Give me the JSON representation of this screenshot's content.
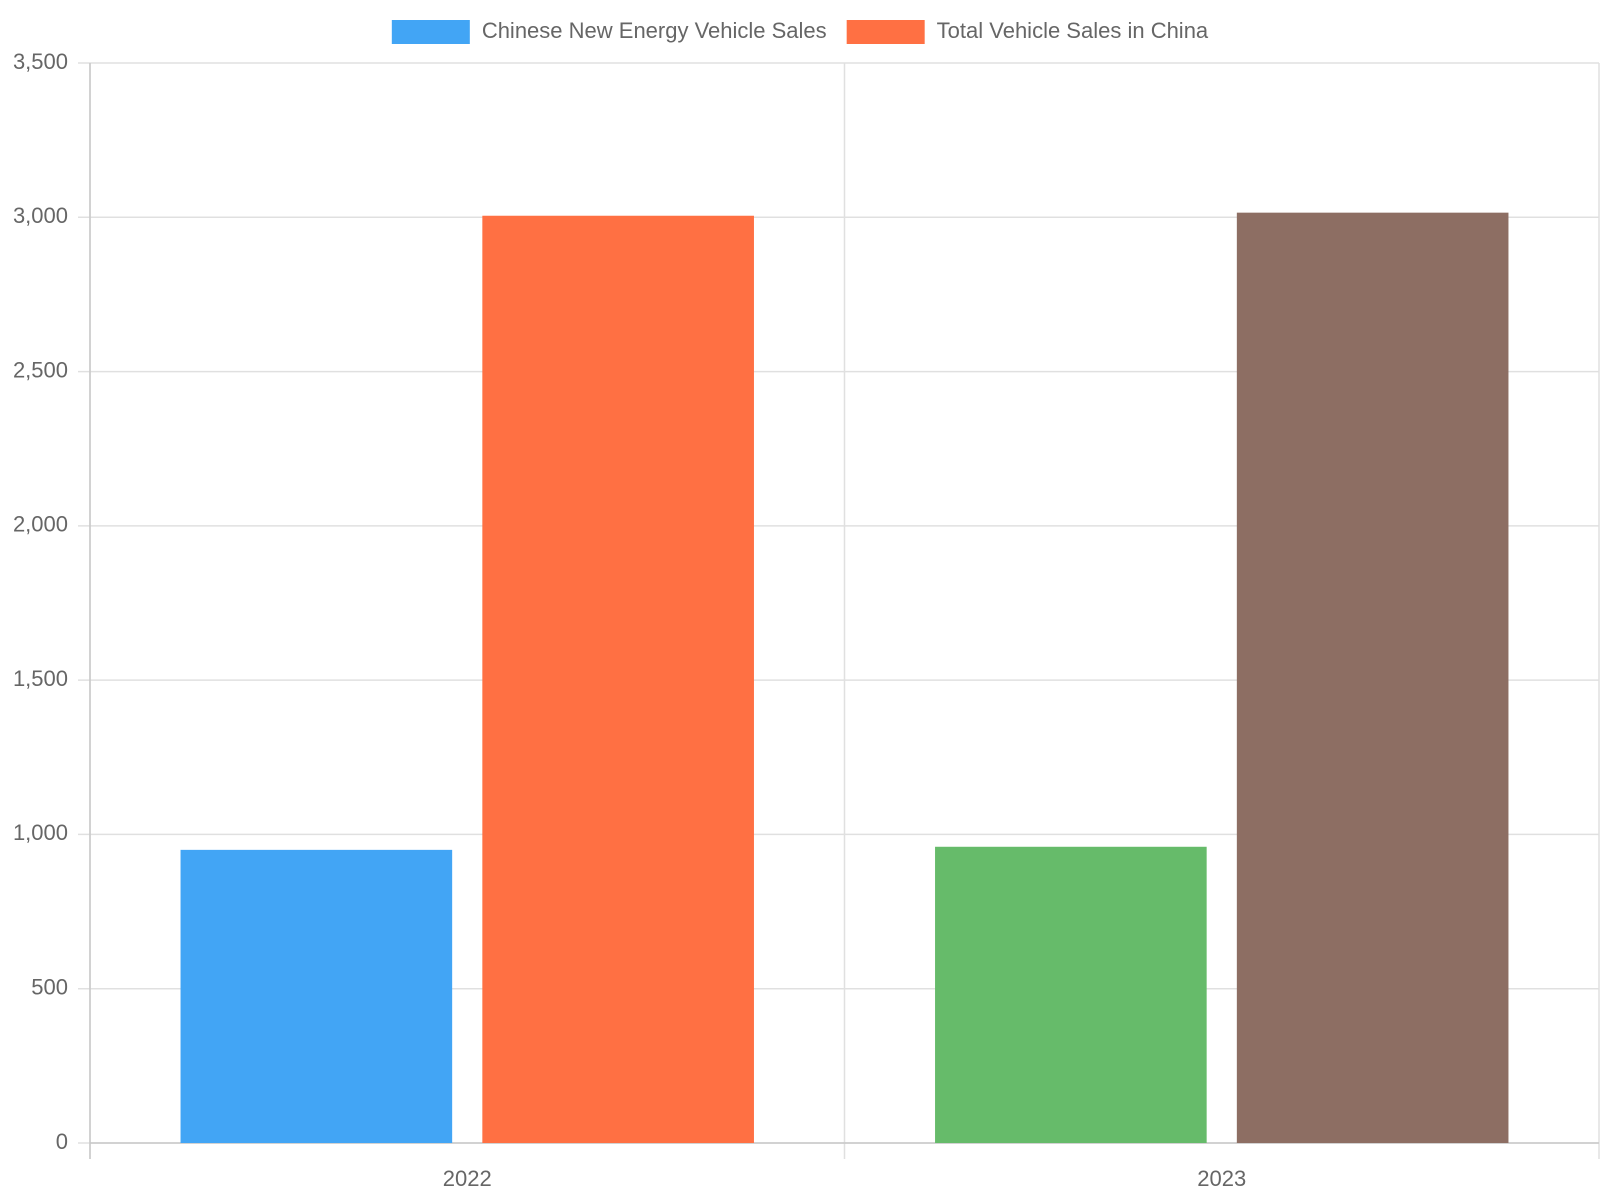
{
  "chart_data": {
    "type": "bar",
    "categories": [
      "2022",
      "2023"
    ],
    "series": [
      {
        "name": "Chinese New Energy Vehicle Sales",
        "colors": [
          "#42a5f5",
          "#66bb6a"
        ],
        "values": [
          950,
          960
        ]
      },
      {
        "name": "Total Vehicle Sales in China",
        "colors": [
          "#ff7043",
          "#8d6e63"
        ],
        "values": [
          3005,
          3015
        ]
      }
    ],
    "ylim": [
      0,
      3500
    ],
    "yticks": [
      0,
      {
        "value": 500,
        "label": "500"
      },
      {
        "value": 1000,
        "label": "1,000"
      },
      {
        "value": 1500,
        "label": "1,500"
      },
      {
        "value": 2000,
        "label": "2,000"
      },
      {
        "value": 2500,
        "label": "2,500"
      },
      {
        "value": 3000,
        "label": "3,000"
      },
      {
        "value": 3500,
        "label": "3,500"
      }
    ],
    "grid": true,
    "legend": "top"
  }
}
